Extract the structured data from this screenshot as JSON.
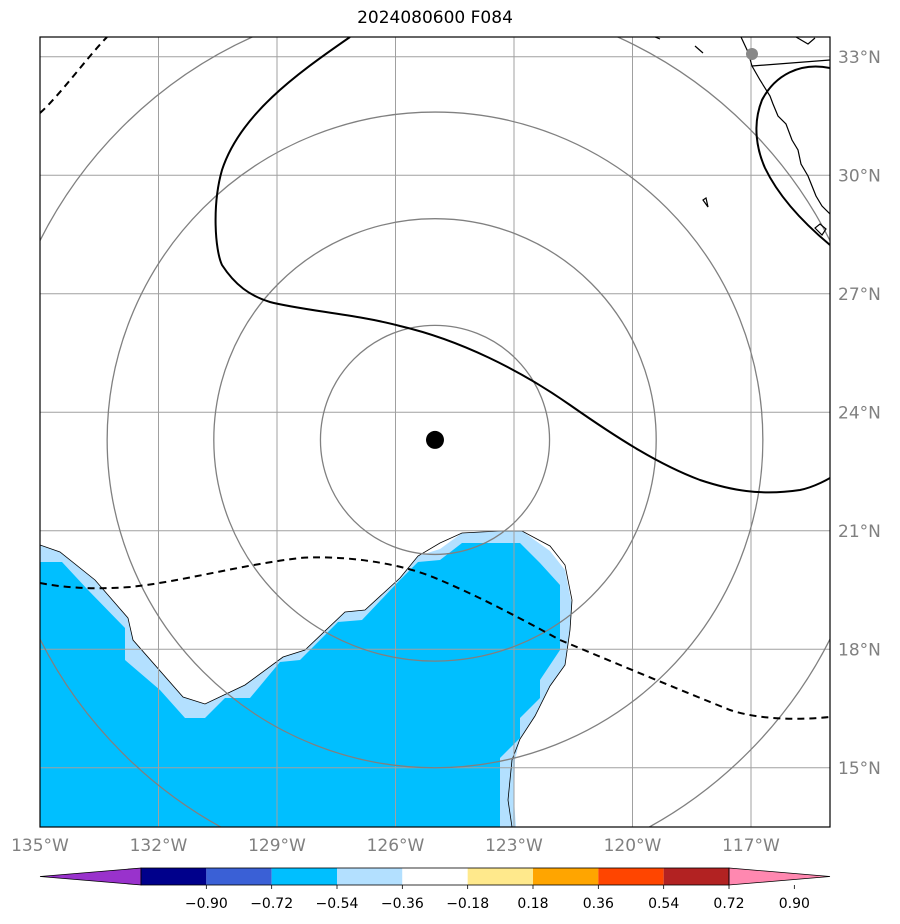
{
  "title": "2024080600 F084",
  "map": {
    "lon_range": [
      -135,
      -115
    ],
    "lat_range": [
      13.5,
      33.5
    ],
    "lon_ticks": [
      {
        "value": -135,
        "label": "135°W"
      },
      {
        "value": -132,
        "label": "132°W"
      },
      {
        "value": -129,
        "label": "129°W"
      },
      {
        "value": -126,
        "label": "126°W"
      },
      {
        "value": -123,
        "label": "123°W"
      },
      {
        "value": -120,
        "label": "120°W"
      },
      {
        "value": -117,
        "label": "117°W"
      }
    ],
    "lat_ticks": [
      {
        "value": 33,
        "label": "33°N"
      },
      {
        "value": 30,
        "label": "30°N"
      },
      {
        "value": 27,
        "label": "27°N"
      },
      {
        "value": 24,
        "label": "24°N"
      },
      {
        "value": 21,
        "label": "21°N"
      },
      {
        "value": 18,
        "label": "18°N"
      },
      {
        "value": 15,
        "label": "15°N"
      }
    ],
    "gridlines": true,
    "storm_center": {
      "lon": -125,
      "lat": 23.3
    },
    "range_rings_deg": [
      2.9,
      5.6,
      8.3,
      11.2
    ],
    "fill_color": "#00bfff",
    "fill_edge_color": "#b3e0ff"
  },
  "colorbar": {
    "colors": [
      "#9932cc",
      "#00008b",
      "#3a60d6",
      "#00bfff",
      "#b3e0ff",
      "#ffffff",
      "#ffe98c",
      "#ffa500",
      "#ff4500",
      "#b22222",
      "#ff88b0"
    ],
    "tick_labels": [
      "−0.90",
      "−0.72",
      "−0.54",
      "−0.36",
      "−0.18",
      "0.18",
      "0.36",
      "0.54",
      "0.72",
      "0.90"
    ]
  }
}
